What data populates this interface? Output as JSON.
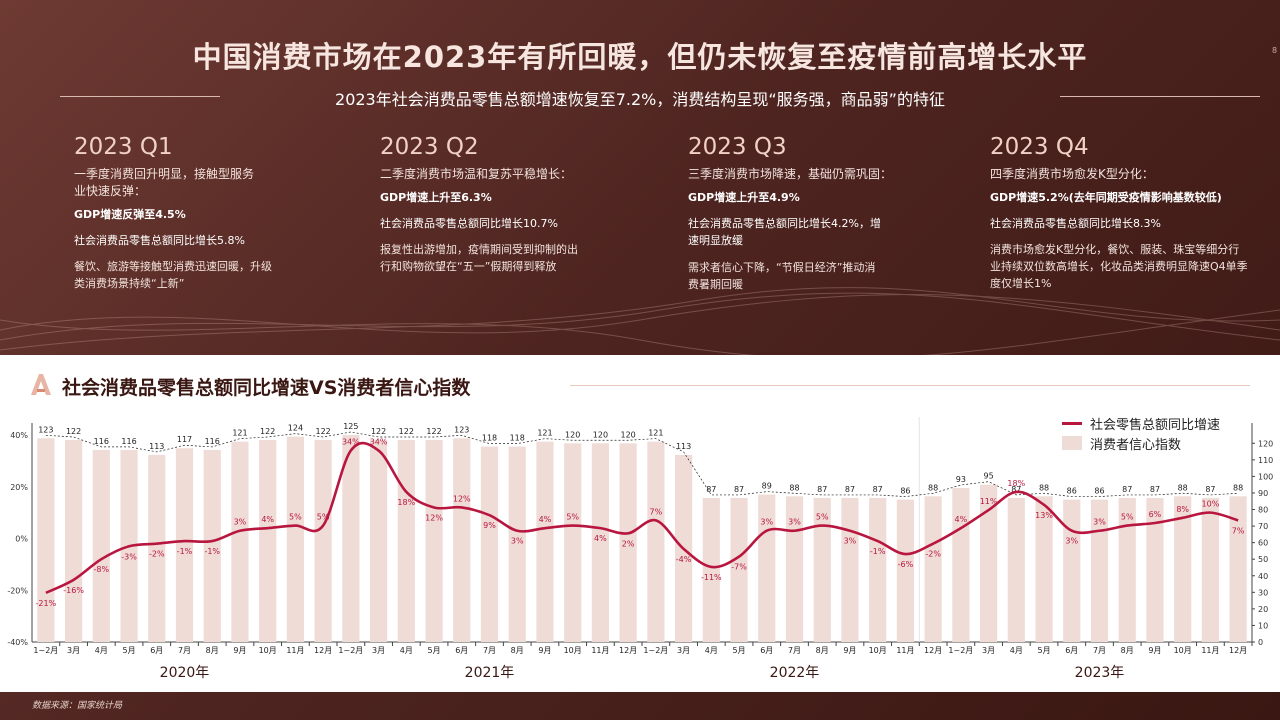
{
  "header": {
    "title": "中国消费市场在2023年有所回暖，但仍未恢复至疫情前高增长水平",
    "subtitle": "2023年社会消费品零售总额增速恢复至7.2%，消费结构呈现“服务强，商品弱”的特征",
    "page_mark": "8"
  },
  "quarters": [
    {
      "title": "2023 Q1",
      "intro": "一季度消费回升明显，接触型服务业快速反弹：",
      "gdp": "GDP增速反弹至4.5%",
      "retail": "社会消费品零售总额同比增长5.8%",
      "desc": "餐饮、旅游等接触型消费迅速回暖，升级类消费场景持续“上新”"
    },
    {
      "title": "2023 Q2",
      "intro": "二季度消费市场温和复苏平稳增长：",
      "gdp": "GDP增速上升至6.3%",
      "retail": "社会消费品零售总额同比增长10.7%",
      "desc": "报复性出游增加，疫情期间受到抑制的出行和购物欲望在“五一”假期得到释放"
    },
    {
      "title": "2023 Q3",
      "intro": "三季度消费市场降速，基础仍需巩固：",
      "gdp": "GDP增速上升至4.9%",
      "retail": "社会消费品零售总额同比增长4.2%，增速明显放缓",
      "desc": "需求者信心下降，“节假日经济”推动消费暑期回暖"
    },
    {
      "title": "2023 Q4",
      "intro": "四季度消费市场愈发K型分化：",
      "gdp": "GDP增速5.2%(去年同期受疫情影响基数较低)",
      "retail": "社会消费品零售总额同比增长8.3%",
      "desc": "消费市场愈发K型分化，餐饮、服装、珠宝等细分行业持续双位数高增长，化妆品类消费明显降速Q4单季度仅增长1%"
    }
  ],
  "panel": {
    "title": "社会消费品零售总额同比增速VS消费者信心指数",
    "legend_line": "社会零售总额同比增速",
    "legend_bar": "消费者信心指数"
  },
  "source": "数据来源：国家统计局",
  "chart_data": {
    "type": "bar",
    "categories": [
      "1~2月",
      "3月",
      "4月",
      "5月",
      "6月",
      "7月",
      "8月",
      "9月",
      "10月",
      "11月",
      "12月",
      "1~2月",
      "3月",
      "4月",
      "5月",
      "6月",
      "7月",
      "8月",
      "9月",
      "10月",
      "11月",
      "12月",
      "1~2月",
      "3月",
      "4月",
      "5月",
      "6月",
      "7月",
      "8月",
      "9月",
      "10月",
      "11月",
      "12月",
      "1~2月",
      "3月",
      "4月",
      "5月",
      "6月",
      "7月",
      "8月",
      "9月",
      "10月",
      "11月",
      "12月"
    ],
    "years": [
      {
        "label": "2020年",
        "start": 0,
        "end": 10
      },
      {
        "label": "2021年",
        "start": 11,
        "end": 21
      },
      {
        "label": "2022年",
        "start": 22,
        "end": 32
      },
      {
        "label": "2023年",
        "start": 33,
        "end": 43
      }
    ],
    "series": [
      {
        "name": "消费者信心指数",
        "type": "bar",
        "axis": "right",
        "color": "#efdcd6",
        "values": [
          123,
          122,
          116,
          116,
          113,
          117,
          116,
          121,
          122,
          124,
          122,
          125,
          122,
          122,
          122,
          123,
          118,
          118,
          121,
          120,
          120,
          120,
          121,
          113,
          87,
          87,
          89,
          88,
          87,
          87,
          87,
          86,
          88,
          93,
          95,
          87,
          88,
          86,
          86,
          87,
          87,
          88,
          87,
          88
        ]
      },
      {
        "name": "社会零售总额同比增速",
        "type": "line",
        "axis": "left",
        "color": "#b8163f",
        "values": [
          -21,
          -16,
          -8,
          -3,
          -2,
          -1,
          -1,
          3,
          4,
          5,
          5,
          34,
          34,
          18,
          12,
          12,
          9,
          3,
          4,
          5,
          4,
          2,
          7,
          -4,
          -11,
          -7,
          3,
          3,
          5,
          3,
          -1,
          -6,
          -2,
          4,
          11,
          18,
          13,
          3,
          3,
          5,
          6,
          8,
          10,
          7
        ]
      }
    ],
    "y_left": {
      "min": -40,
      "max": 40,
      "ticks": [
        "-40%",
        "-20%",
        "0%",
        "20%",
        "40%"
      ]
    },
    "y_right": {
      "min": 0,
      "max": 125,
      "ticks": [
        "0",
        "10",
        "20",
        "30",
        "40",
        "50",
        "60",
        "70",
        "80",
        "90",
        "100",
        "110",
        "120"
      ]
    }
  }
}
